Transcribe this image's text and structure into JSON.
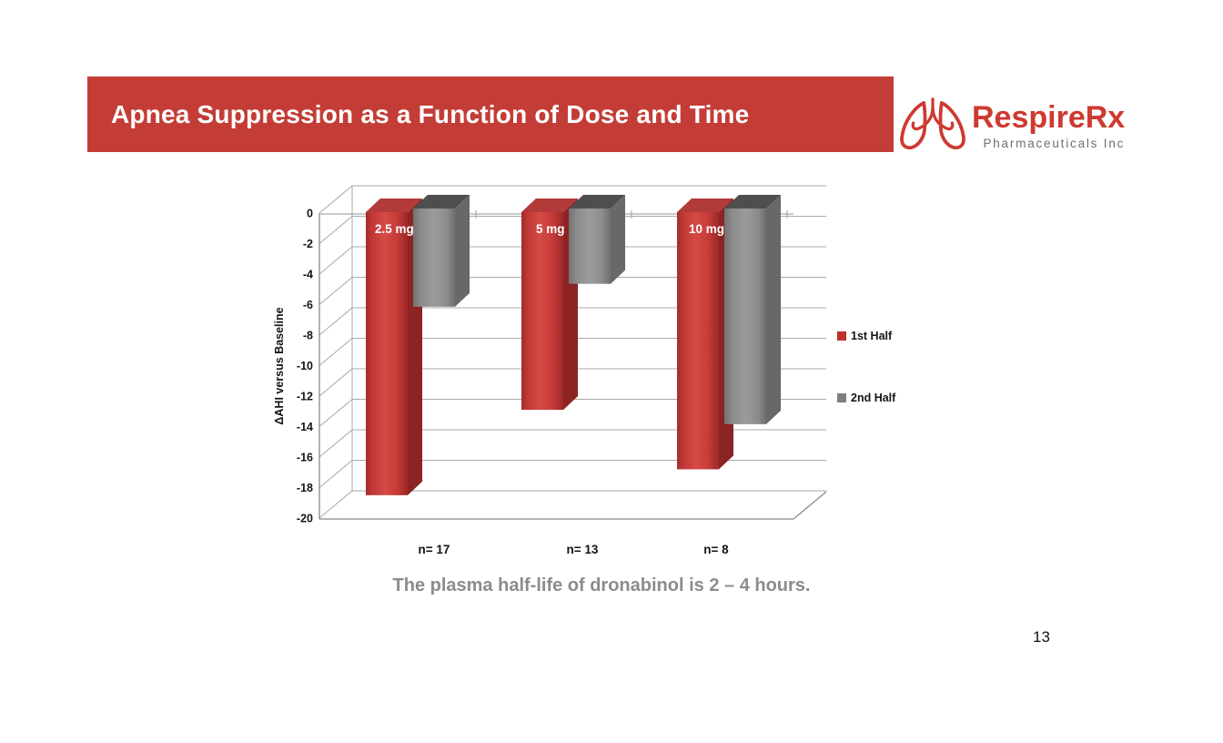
{
  "slide": {
    "title": "Apnea Suppression as a Function of Dose and Time",
    "page_number": "13"
  },
  "logo": {
    "name": "RespireRx",
    "subtitle": "Pharmaceuticals Inc",
    "icon": "lungs-icon",
    "accent_color": "#cd3a30",
    "subtitle_color": "#6f6f6f"
  },
  "caption": "The plasma half-life of dronabinol is 2 – 4 hours.",
  "colors": {
    "banner": "#c33d36",
    "grid": "#a9a9a9",
    "wall": "#8a8a8a",
    "tick_text": "#141414",
    "red_top": "#b23a38",
    "red_side": "#8c2423",
    "gray_top": "#4e4e4e",
    "gray_side": "#686868"
  },
  "chart_data": {
    "type": "bar",
    "style": "3d-clustered-columns",
    "title": "",
    "xlabel": "",
    "ylabel": "ΔAHI versus Baseline",
    "ylim": [
      0,
      -20
    ],
    "yticks": [
      0,
      -2,
      -4,
      -6,
      -8,
      -10,
      -12,
      -14,
      -16,
      -18,
      -20
    ],
    "grid": true,
    "legend_position": "right",
    "categories": [
      "2.5 mg",
      "5 mg",
      "10 mg"
    ],
    "category_sublabels": [
      "n= 17",
      "n= 13",
      "n= 8"
    ],
    "series": [
      {
        "name": "1st Half",
        "color": "#c0312d",
        "values": [
          -18.5,
          -12.9,
          -16.8
        ]
      },
      {
        "name": "2nd Half",
        "color": "#7f7f7f",
        "values": [
          -6.2,
          -4.7,
          -13.9
        ]
      }
    ]
  }
}
